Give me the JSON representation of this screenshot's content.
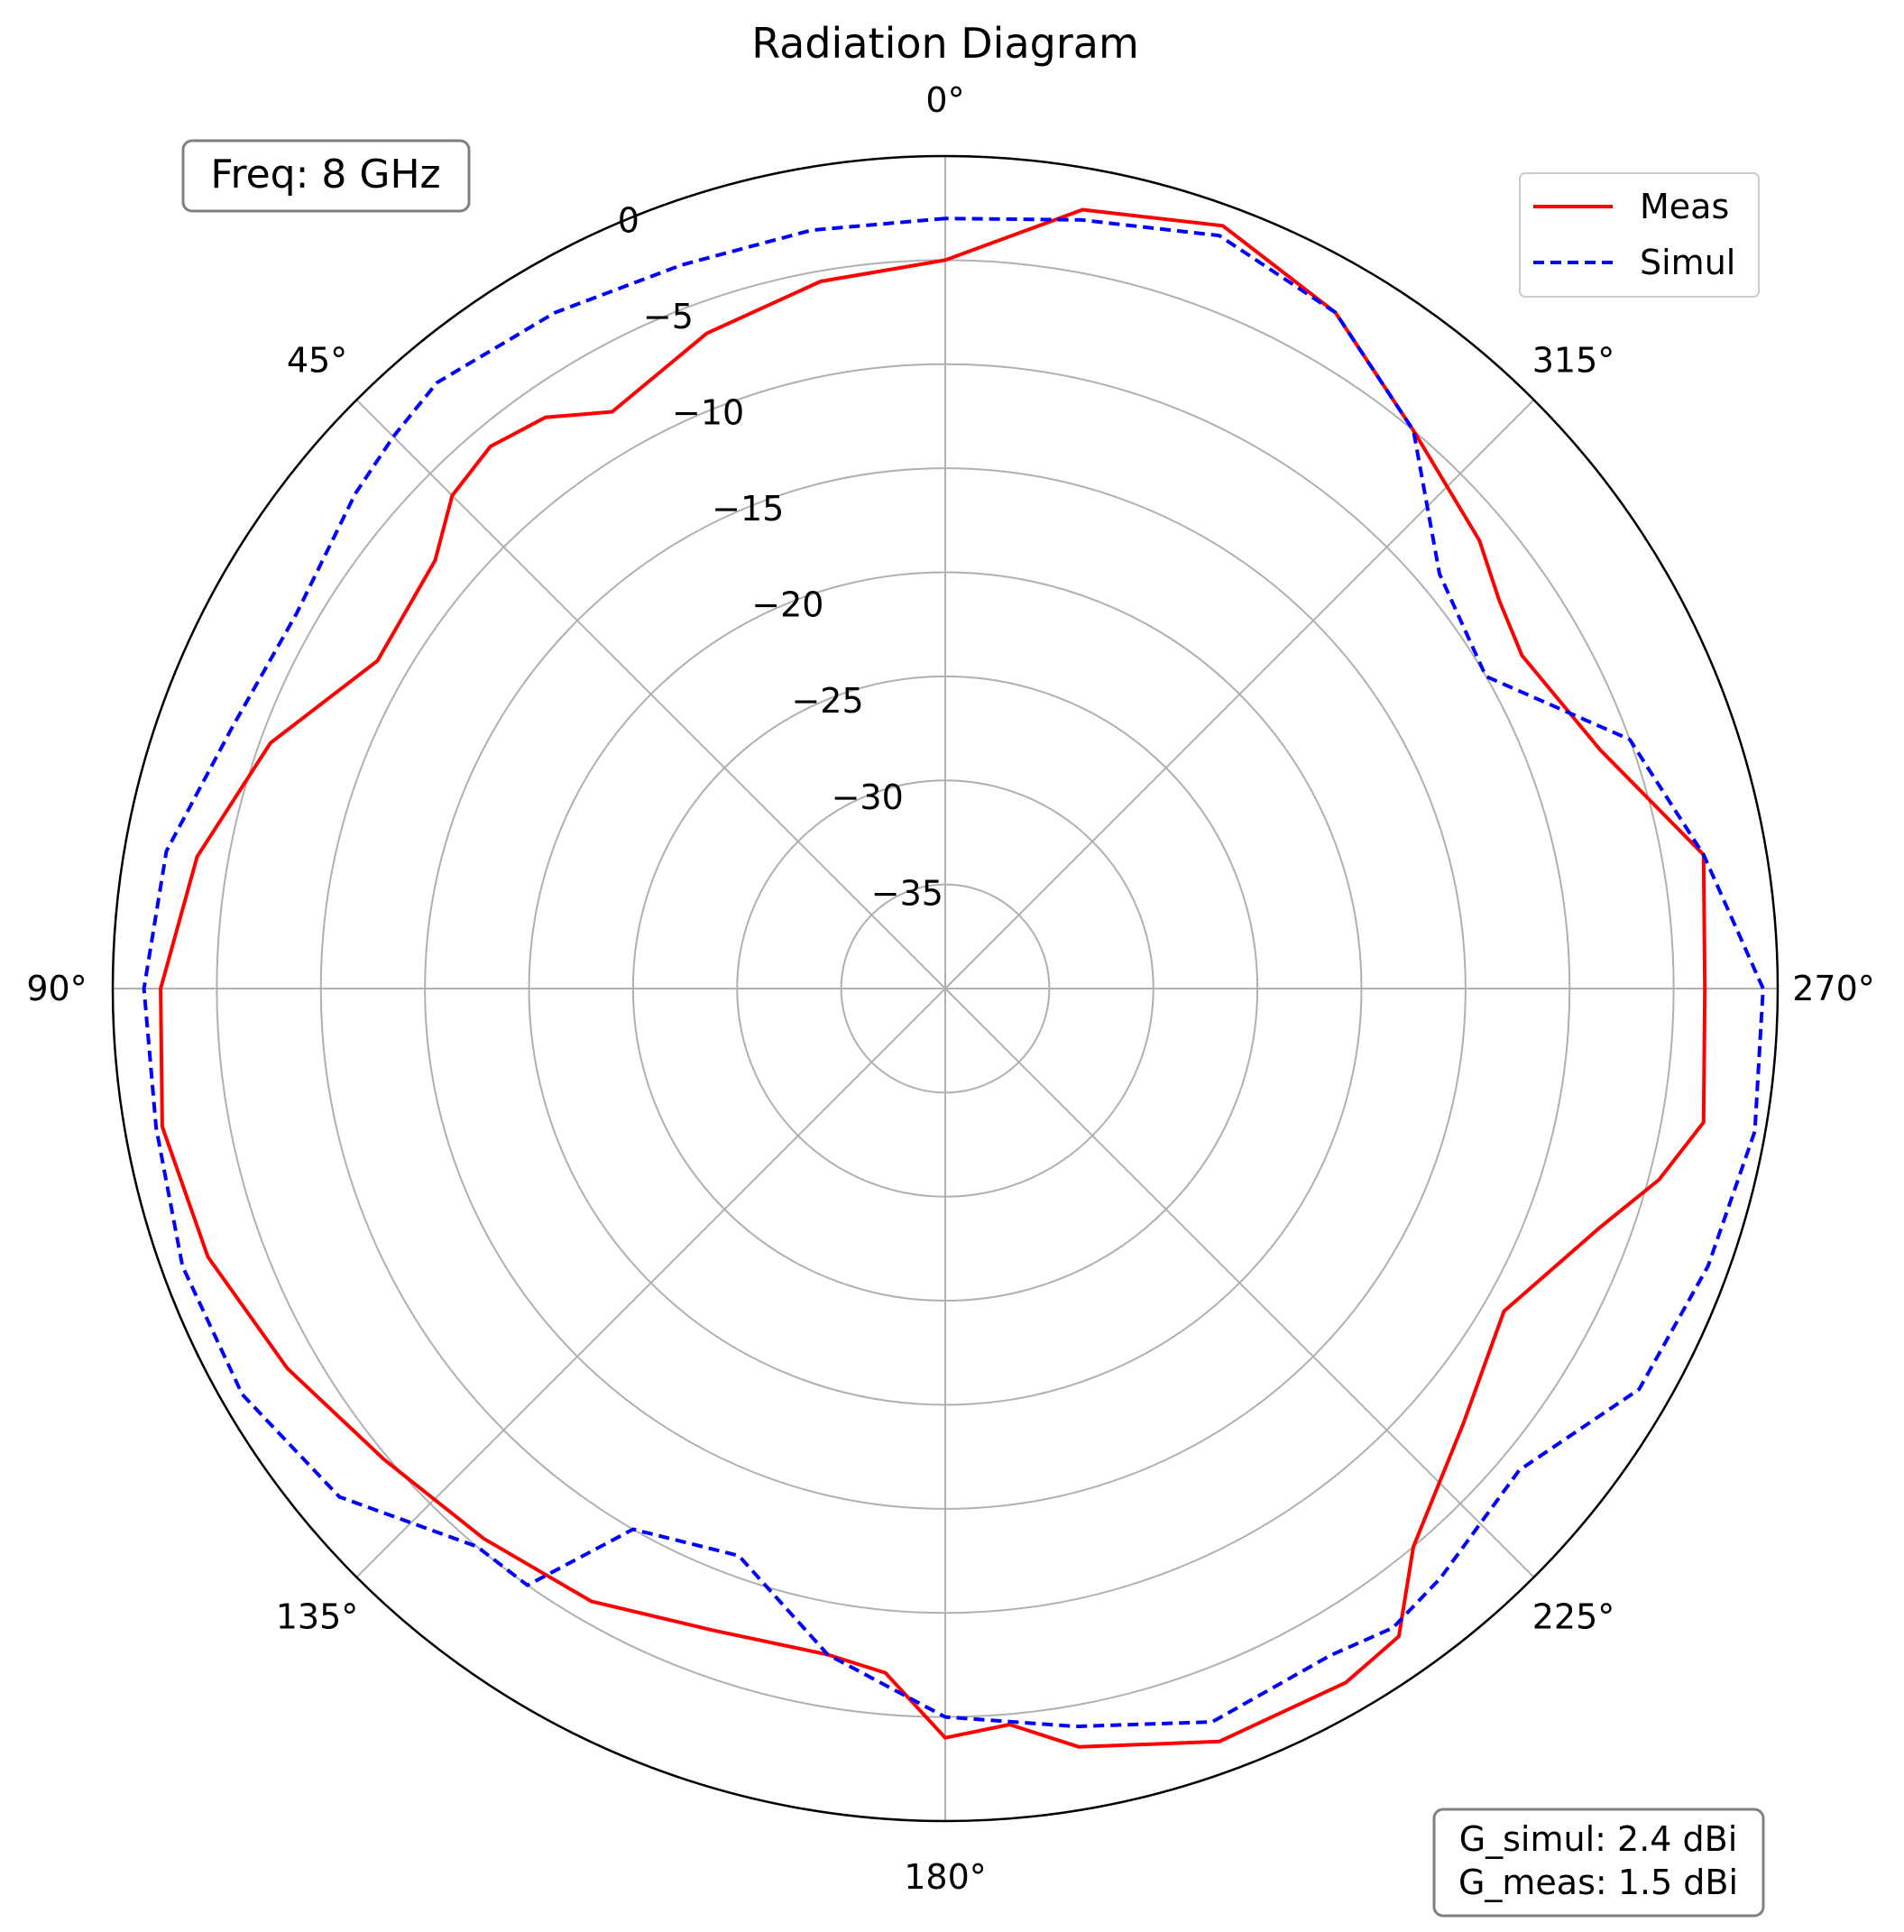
{
  "chart_data": {
    "type": "line",
    "projection": "polar",
    "title": "Radiation Diagram",
    "theta_zero_location": "top",
    "theta_direction": "counterclockwise",
    "theta_ticks": [
      {
        "deg": 0,
        "label": "0°"
      },
      {
        "deg": 45,
        "label": "45°"
      },
      {
        "deg": 90,
        "label": "90°"
      },
      {
        "deg": 135,
        "label": "135°"
      },
      {
        "deg": 180,
        "label": "180°"
      },
      {
        "deg": 225,
        "label": "225°"
      },
      {
        "deg": 270,
        "label": "270°"
      },
      {
        "deg": 315,
        "label": "315°"
      }
    ],
    "r_ticks": [
      {
        "value": 0,
        "label": "0"
      },
      {
        "value": -5,
        "label": "−5"
      },
      {
        "value": -10,
        "label": "−10"
      },
      {
        "value": -15,
        "label": "−15"
      },
      {
        "value": -20,
        "label": "−20"
      },
      {
        "value": -25,
        "label": "−25"
      },
      {
        "value": -30,
        "label": "−30"
      },
      {
        "value": -35,
        "label": "−35"
      }
    ],
    "rlim": [
      -40,
      0
    ],
    "grid": true,
    "legend_position": "top-right",
    "series": [
      {
        "name": "Meas",
        "color": "#ff0000",
        "linestyle": "solid",
        "theta": [
          0,
          10,
          20,
          30,
          35,
          40,
          45,
          50,
          60,
          70,
          80,
          90,
          100,
          110,
          120,
          130,
          140,
          150,
          160,
          170,
          175,
          180,
          185,
          190,
          200,
          210,
          215,
          220,
          230,
          240,
          250,
          255,
          260,
          270,
          280,
          290,
          300,
          305,
          310,
          320,
          330,
          340,
          350,
          360
        ],
        "r": [
          -5,
          -5.5,
          -6.5,
          -8,
          -6.5,
          -6,
          -6.5,
          -8,
          -8.5,
          -5.5,
          -3.5,
          -2.3,
          -1.8,
          -2.3,
          -3.5,
          -4.8,
          -5.5,
          -6,
          -7.2,
          -7.5,
          -7,
          -4,
          -4.5,
          -3,
          -1.5,
          -1.5,
          -2,
          -5,
          -7.5,
          -9,
          -6.5,
          -4.5,
          -3,
          -3.5,
          -3,
          -6.5,
          -8,
          -7.5,
          -6.5,
          -5,
          -2.5,
          -1,
          -2,
          -5
        ]
      },
      {
        "name": "Simul",
        "color": "#0000ff",
        "linestyle": "dashed",
        "theta": [
          0,
          10,
          20,
          30,
          40,
          45,
          50,
          60,
          70,
          80,
          90,
          100,
          110,
          120,
          130,
          140,
          145,
          150,
          160,
          170,
          180,
          190,
          200,
          210,
          215,
          220,
          230,
          240,
          250,
          260,
          270,
          280,
          290,
          300,
          310,
          320,
          330,
          340,
          350,
          360
        ],
        "r": [
          -3,
          -3,
          -3,
          -2.5,
          -2,
          -2.5,
          -3,
          -4,
          -3.5,
          -2,
          -1.5,
          -1.5,
          -1,
          -1,
          -2,
          -5,
          -5,
          -10,
          -11,
          -7.5,
          -5,
          -4,
          -2.5,
          -3,
          -2.5,
          -3,
          -4,
          -1.5,
          -1,
          -0.5,
          -0.7,
          -3,
          -5,
          -10,
          -9,
          -5,
          -2.5,
          -1.5,
          -2.5,
          -3
        ]
      }
    ]
  },
  "annotations": {
    "freq_label": "Freq: 8 GHz",
    "gain_simul": "G_simul: 2.4 dBi",
    "gain_meas": "G_meas: 1.5 dBi"
  }
}
